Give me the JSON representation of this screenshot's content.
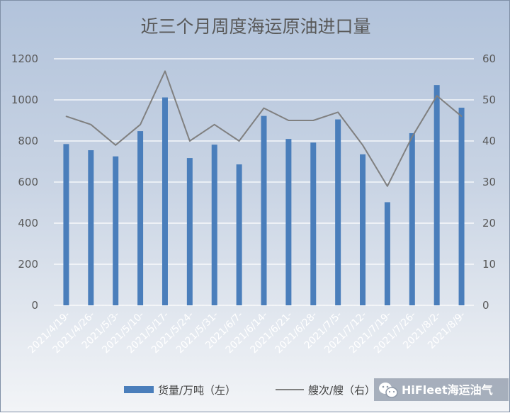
{
  "chart_data": {
    "type": "bar",
    "title": "近三个月周度海运原油进口量",
    "categories": [
      "2021/4/19-",
      "2021/4/26-",
      "2021/5/3-",
      "2021/5/10-",
      "2021/5/17-",
      "2021/5/24-",
      "2021/5/31-",
      "2021/6/7-",
      "2021/6/14-",
      "2021/6/21-",
      "2021/6/28-",
      "2021/7/5-",
      "2021/7/12-",
      "2021/7/19-",
      "2021/7/26-",
      "2021/8/2-",
      "2021/8/9-"
    ],
    "series": [
      {
        "name": "货量/万吨（左）",
        "type": "bar",
        "axis": "left",
        "color": "#4a7ebb",
        "values": [
          785,
          755,
          725,
          848,
          1012,
          717,
          782,
          686,
          922,
          810,
          792,
          905,
          735,
          502,
          838,
          1072,
          962
        ]
      },
      {
        "name": "艘次/艘（右）",
        "type": "line",
        "axis": "right",
        "color": "#808080",
        "values": [
          46,
          44,
          39,
          44,
          57,
          40,
          44,
          40,
          48,
          45,
          45,
          47,
          39,
          29,
          41,
          51,
          46
        ]
      }
    ],
    "y_left": {
      "min": 0,
      "max": 1200,
      "ticks": [
        0,
        200,
        400,
        600,
        800,
        1000,
        1200
      ]
    },
    "y_right": {
      "min": 0,
      "max": 60,
      "ticks": [
        0,
        10,
        20,
        30,
        40,
        50,
        60
      ]
    },
    "grid": true,
    "legend_position": "bottom"
  },
  "legend": {
    "bar_label": "货量/万吨（左）",
    "line_label": "艘次/艘（右）"
  },
  "watermark": {
    "text": "HiFleet海运油气",
    "icon": "wechat-icon"
  },
  "colors": {
    "bar": "#4a7ebb",
    "line": "#808080",
    "grid": "#ffffff"
  }
}
